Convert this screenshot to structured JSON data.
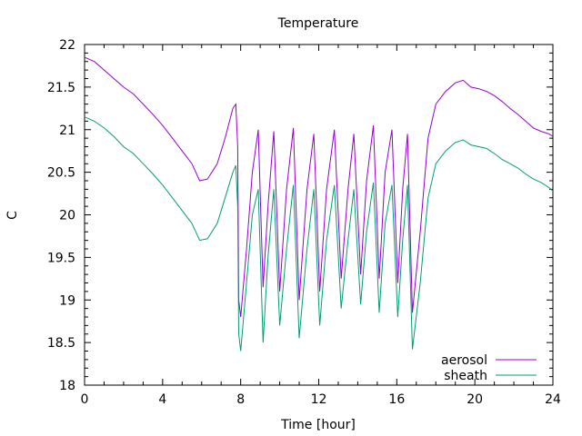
{
  "chart_data": {
    "type": "line",
    "title": "Temperature",
    "xlabel": "Time [hour]",
    "ylabel": "C",
    "xlim": [
      0,
      24
    ],
    "ylim": [
      18,
      22
    ],
    "xticks": [
      0,
      4,
      8,
      12,
      16,
      20,
      24
    ],
    "yticks": [
      18,
      18.5,
      19,
      19.5,
      20,
      20.5,
      21,
      21.5,
      22
    ],
    "grid": false,
    "legend_position": "bottom-right",
    "series": [
      {
        "name": "aerosol",
        "color": "#9400d3",
        "x": [
          0,
          0.5,
          1,
          1.5,
          2,
          2.5,
          3,
          3.5,
          4,
          4.5,
          5,
          5.5,
          5.9,
          6.3,
          6.8,
          7.2,
          7.6,
          7.75,
          7.85,
          7.9,
          8.0,
          8.3,
          8.6,
          8.9,
          9.15,
          9.4,
          9.7,
          10.0,
          10.35,
          10.7,
          11.0,
          11.4,
          11.75,
          12.05,
          12.4,
          12.8,
          13.15,
          13.5,
          13.8,
          14.15,
          14.45,
          14.8,
          15.1,
          15.4,
          15.75,
          16.05,
          16.3,
          16.55,
          16.8,
          17.2,
          17.6,
          18.0,
          18.5,
          19.0,
          19.4,
          19.8,
          20.2,
          20.6,
          21.0,
          21.4,
          21.8,
          22.2,
          22.6,
          23.0,
          23.4,
          23.8,
          24.0
        ],
        "values": [
          21.85,
          21.8,
          21.7,
          21.6,
          21.5,
          21.42,
          21.3,
          21.18,
          21.05,
          20.9,
          20.75,
          20.6,
          20.4,
          20.42,
          20.6,
          20.9,
          21.25,
          21.3,
          20.8,
          19.0,
          18.8,
          19.6,
          20.5,
          21.0,
          19.15,
          20.1,
          20.98,
          19.1,
          20.3,
          21.02,
          19.0,
          20.3,
          20.95,
          19.1,
          20.3,
          21.0,
          19.25,
          20.3,
          20.95,
          19.3,
          20.4,
          21.05,
          19.25,
          20.5,
          21.0,
          19.2,
          20.3,
          20.95,
          18.85,
          19.8,
          20.9,
          21.3,
          21.45,
          21.55,
          21.58,
          21.5,
          21.48,
          21.45,
          21.4,
          21.33,
          21.25,
          21.18,
          21.1,
          21.02,
          20.98,
          20.95,
          20.92
        ]
      },
      {
        "name": "sheath",
        "color": "#009e73",
        "x": [
          0,
          0.5,
          1,
          1.5,
          2,
          2.5,
          3,
          3.5,
          4,
          4.5,
          5,
          5.5,
          5.9,
          6.3,
          6.8,
          7.2,
          7.6,
          7.75,
          7.85,
          7.9,
          8.0,
          8.3,
          8.6,
          8.9,
          9.15,
          9.4,
          9.7,
          10.0,
          10.35,
          10.7,
          11.0,
          11.4,
          11.75,
          12.05,
          12.4,
          12.8,
          13.15,
          13.5,
          13.8,
          14.15,
          14.45,
          14.8,
          15.1,
          15.4,
          15.75,
          16.05,
          16.3,
          16.55,
          16.8,
          17.2,
          17.6,
          18.0,
          18.5,
          19.0,
          19.4,
          19.8,
          20.2,
          20.6,
          21.0,
          21.4,
          21.8,
          22.2,
          22.6,
          23.0,
          23.4,
          23.8,
          24.0
        ],
        "values": [
          21.15,
          21.1,
          21.02,
          20.92,
          20.8,
          20.72,
          20.6,
          20.48,
          20.35,
          20.2,
          20.05,
          19.9,
          19.7,
          19.72,
          19.9,
          20.2,
          20.5,
          20.58,
          20.1,
          18.6,
          18.4,
          19.2,
          20.0,
          20.3,
          18.5,
          19.5,
          20.3,
          18.7,
          19.6,
          20.35,
          18.55,
          19.6,
          20.3,
          18.7,
          19.7,
          20.35,
          18.9,
          19.7,
          20.3,
          18.95,
          19.8,
          20.38,
          18.85,
          19.9,
          20.35,
          18.8,
          19.7,
          20.35,
          18.42,
          19.2,
          20.2,
          20.6,
          20.75,
          20.85,
          20.88,
          20.82,
          20.8,
          20.78,
          20.72,
          20.65,
          20.6,
          20.55,
          20.48,
          20.42,
          20.38,
          20.32,
          20.28
        ]
      }
    ]
  }
}
